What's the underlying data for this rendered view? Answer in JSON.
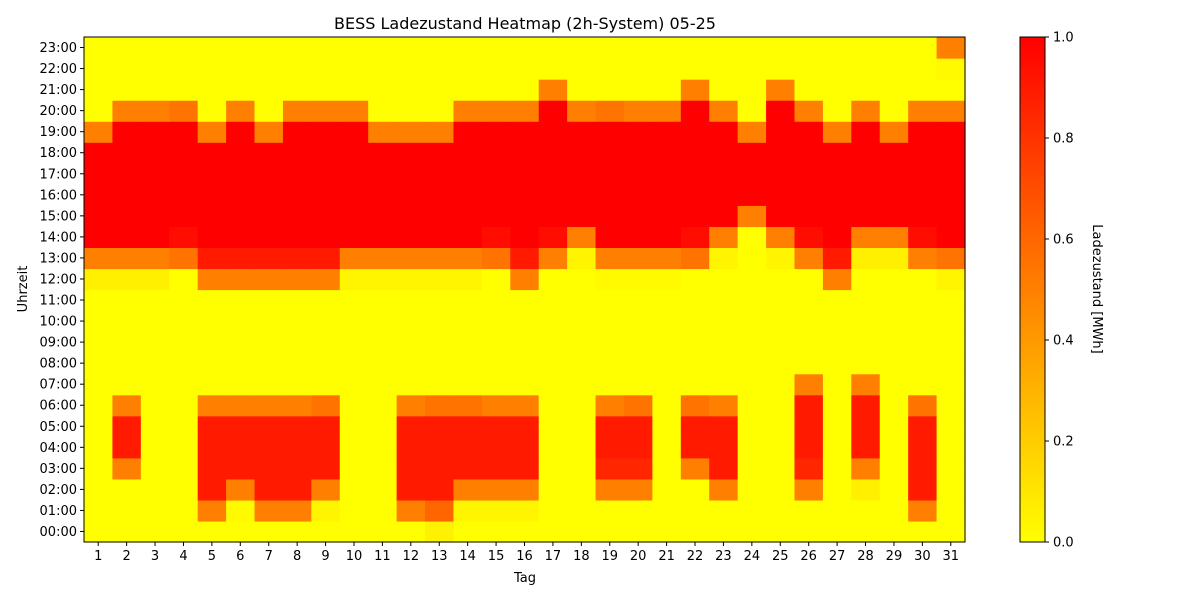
{
  "chart_data": {
    "type": "heatmap",
    "title": "BESS Ladezustand Heatmap (2h-System) 05-25",
    "xlabel": "Tag",
    "ylabel": "Uhrzeit",
    "x": [
      "1",
      "2",
      "3",
      "4",
      "5",
      "6",
      "7",
      "8",
      "9",
      "10",
      "11",
      "12",
      "13",
      "14",
      "15",
      "16",
      "17",
      "18",
      "19",
      "20",
      "21",
      "22",
      "23",
      "24",
      "25",
      "26",
      "27",
      "28",
      "29",
      "30",
      "31"
    ],
    "y": [
      "00:00",
      "01:00",
      "02:00",
      "03:00",
      "04:00",
      "05:00",
      "06:00",
      "07:00",
      "08:00",
      "09:00",
      "10:00",
      "11:00",
      "12:00",
      "13:00",
      "14:00",
      "15:00",
      "16:00",
      "17:00",
      "18:00",
      "19:00",
      "20:00",
      "21:00",
      "22:00",
      "23:00"
    ],
    "colorbar": {
      "label": "Ladezustand [MWh]",
      "min": 0.0,
      "max": 1.0,
      "ticks": [
        "0.0",
        "0.2",
        "0.4",
        "0.6",
        "0.8",
        "1.0"
      ],
      "colors": [
        "#ffff00",
        "#ff8000",
        "#ff0000"
      ]
    },
    "values": [
      [
        0,
        0,
        0,
        0,
        0,
        0,
        0,
        0,
        0,
        0,
        0,
        0,
        0.05,
        0,
        0,
        0,
        0,
        0,
        0,
        0,
        0,
        0,
        0,
        0,
        0,
        0,
        0,
        0,
        0,
        0,
        0
      ],
      [
        0,
        0,
        0,
        0,
        0.5,
        0.02,
        0.5,
        0.5,
        0.04,
        0,
        0,
        0.5,
        0.6,
        0.04,
        0.04,
        0.04,
        0,
        0,
        0,
        0,
        0,
        0,
        0,
        0,
        0,
        0,
        0,
        0,
        0,
        0.5,
        0
      ],
      [
        0,
        0,
        0,
        0,
        0.9,
        0.5,
        0.9,
        0.9,
        0.5,
        0,
        0,
        0.9,
        0.9,
        0.5,
        0.5,
        0.5,
        0,
        0,
        0.5,
        0.5,
        0,
        0,
        0.5,
        0,
        0,
        0.5,
        0,
        0.06,
        0,
        0.9,
        0
      ],
      [
        0,
        0.5,
        0,
        0,
        0.9,
        0.9,
        0.9,
        0.9,
        0.9,
        0,
        0,
        0.9,
        0.9,
        0.9,
        0.9,
        0.9,
        0,
        0,
        0.85,
        0.85,
        0,
        0.5,
        0.9,
        0,
        0,
        0.85,
        0,
        0.5,
        0,
        0.9,
        0
      ],
      [
        0,
        0.9,
        0,
        0,
        0.9,
        0.9,
        0.9,
        0.9,
        0.9,
        0,
        0,
        0.9,
        0.9,
        0.9,
        0.9,
        0.9,
        0,
        0,
        0.9,
        0.9,
        0,
        0.9,
        0.9,
        0,
        0,
        0.9,
        0,
        0.9,
        0,
        0.9,
        0
      ],
      [
        0,
        0.9,
        0,
        0,
        0.9,
        0.9,
        0.9,
        0.9,
        0.9,
        0,
        0,
        0.9,
        0.9,
        0.9,
        0.9,
        0.9,
        0,
        0,
        0.9,
        0.9,
        0,
        0.9,
        0.9,
        0,
        0,
        0.9,
        0,
        0.9,
        0,
        0.9,
        0
      ],
      [
        0,
        0.5,
        0,
        0,
        0.5,
        0.5,
        0.5,
        0.5,
        0.55,
        0,
        0,
        0.5,
        0.55,
        0.55,
        0.5,
        0.5,
        0,
        0,
        0.5,
        0.55,
        0,
        0.55,
        0.5,
        0,
        0,
        0.9,
        0,
        0.9,
        0,
        0.55,
        0
      ],
      [
        0,
        0,
        0,
        0,
        0,
        0,
        0,
        0,
        0,
        0,
        0,
        0,
        0,
        0,
        0,
        0,
        0,
        0,
        0,
        0,
        0,
        0,
        0,
        0,
        0,
        0.5,
        0,
        0.5,
        0,
        0,
        0
      ],
      [
        0,
        0,
        0,
        0,
        0,
        0,
        0,
        0,
        0,
        0,
        0,
        0,
        0,
        0,
        0,
        0,
        0,
        0,
        0,
        0,
        0,
        0,
        0,
        0,
        0,
        0,
        0,
        0,
        0,
        0,
        0
      ],
      [
        0,
        0,
        0,
        0,
        0,
        0,
        0,
        0,
        0,
        0,
        0,
        0,
        0,
        0,
        0,
        0,
        0,
        0,
        0,
        0,
        0,
        0,
        0,
        0,
        0,
        0,
        0,
        0,
        0,
        0,
        0
      ],
      [
        0,
        0,
        0,
        0,
        0,
        0,
        0,
        0,
        0,
        0,
        0,
        0,
        0,
        0,
        0,
        0,
        0,
        0,
        0,
        0,
        0,
        0,
        0,
        0,
        0,
        0,
        0,
        0,
        0,
        0,
        0
      ],
      [
        0,
        0,
        0,
        0,
        0,
        0,
        0,
        0,
        0,
        0,
        0,
        0,
        0,
        0,
        0,
        0,
        0,
        0,
        0,
        0,
        0,
        0,
        0,
        0,
        0,
        0,
        0,
        0,
        0,
        0,
        0
      ],
      [
        0.06,
        0.06,
        0.06,
        0,
        0.5,
        0.5,
        0.5,
        0.5,
        0.5,
        0.04,
        0.04,
        0.04,
        0.04,
        0.04,
        0,
        0.5,
        0,
        0,
        0.02,
        0.02,
        0.02,
        0,
        0,
        0,
        0,
        0,
        0.5,
        0,
        0,
        0,
        0.04
      ],
      [
        0.5,
        0.5,
        0.5,
        0.55,
        0.9,
        0.9,
        0.9,
        0.9,
        0.9,
        0.5,
        0.5,
        0.5,
        0.5,
        0.5,
        0.55,
        0.9,
        0.5,
        0.04,
        0.5,
        0.5,
        0.5,
        0.55,
        0.04,
        0,
        0.04,
        0.5,
        0.9,
        0.06,
        0.06,
        0.5,
        0.55
      ],
      [
        1,
        1,
        1,
        0.95,
        1,
        1,
        1,
        1,
        1,
        1,
        1,
        1,
        1,
        1,
        0.95,
        1,
        0.95,
        0.5,
        1,
        1,
        1,
        0.95,
        0.5,
        0,
        0.5,
        0.95,
        1,
        0.5,
        0.5,
        0.95,
        1
      ],
      [
        1,
        1,
        1,
        1,
        1,
        1,
        1,
        1,
        1,
        1,
        1,
        1,
        1,
        1,
        1,
        1,
        1,
        1,
        1,
        1,
        1,
        1,
        1,
        0.5,
        1,
        1,
        1,
        1,
        1,
        1,
        1
      ],
      [
        1,
        1,
        1,
        1,
        1,
        1,
        1,
        1,
        1,
        1,
        1,
        1,
        1,
        1,
        1,
        1,
        1,
        1,
        1,
        1,
        1,
        1,
        1,
        1,
        1,
        1,
        1,
        1,
        1,
        1,
        1
      ],
      [
        1,
        1,
        1,
        1,
        1,
        1,
        1,
        1,
        1,
        1,
        1,
        1,
        1,
        1,
        1,
        1,
        1,
        1,
        1,
        1,
        1,
        1,
        1,
        1,
        1,
        1,
        1,
        1,
        1,
        1,
        1
      ],
      [
        1,
        1,
        1,
        1,
        1,
        1,
        1,
        1,
        1,
        1,
        1,
        1,
        1,
        1,
        1,
        1,
        1,
        1,
        1,
        1,
        1,
        1,
        1,
        1,
        1,
        1,
        1,
        1,
        1,
        1,
        1
      ],
      [
        0.5,
        1,
        1,
        1,
        0.5,
        1,
        0.5,
        1,
        1,
        1,
        0.5,
        0.5,
        0.5,
        1,
        1,
        1,
        1,
        1,
        1,
        1,
        1,
        1,
        1,
        0.5,
        1,
        1,
        0.5,
        1,
        0.5,
        1,
        1
      ],
      [
        0,
        0.5,
        0.5,
        0.55,
        0,
        0.5,
        0,
        0.5,
        0.5,
        0.5,
        0,
        0,
        0,
        0.5,
        0.5,
        0.5,
        1,
        0.5,
        0.55,
        0.5,
        0.5,
        1,
        0.5,
        0,
        1,
        0.5,
        0,
        0.5,
        0,
        0.5,
        0.5
      ],
      [
        0,
        0,
        0,
        0,
        0,
        0,
        0,
        0,
        0,
        0,
        0,
        0,
        0,
        0,
        0,
        0,
        0.5,
        0,
        0,
        0,
        0,
        0.5,
        0,
        0,
        0.5,
        0,
        0,
        0,
        0,
        0,
        0
      ],
      [
        0,
        0,
        0,
        0,
        0,
        0,
        0,
        0,
        0,
        0,
        0,
        0,
        0,
        0,
        0,
        0,
        0,
        0,
        0,
        0,
        0,
        0,
        0,
        0,
        0,
        0,
        0,
        0,
        0,
        0,
        0.02
      ],
      [
        0,
        0,
        0,
        0,
        0,
        0,
        0,
        0,
        0,
        0,
        0,
        0,
        0,
        0,
        0,
        0,
        0,
        0,
        0,
        0,
        0,
        0,
        0,
        0,
        0,
        0,
        0,
        0,
        0,
        0,
        0.5
      ]
    ]
  }
}
